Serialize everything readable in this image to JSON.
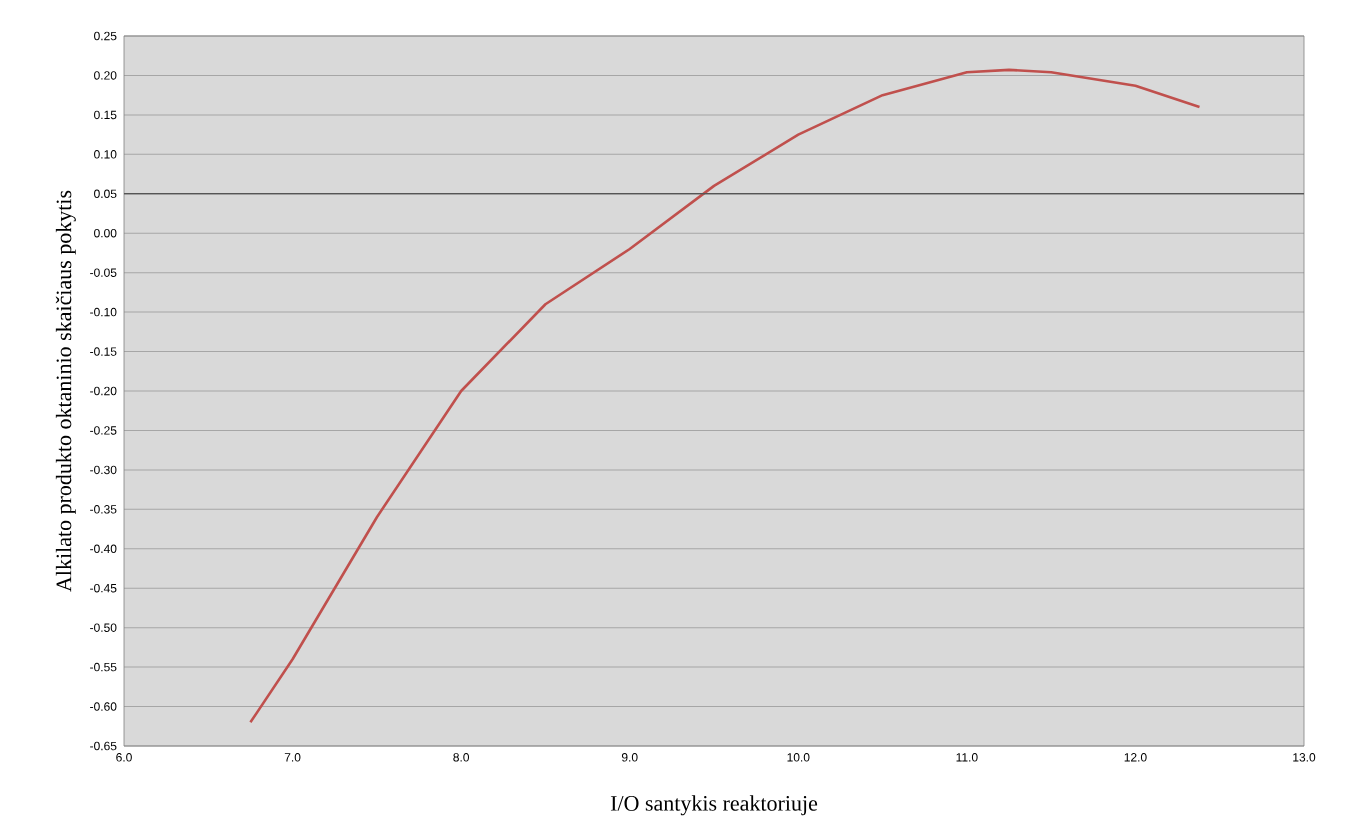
{
  "chart_data": {
    "type": "line",
    "xlabel": "I/O santykis reaktoriuje",
    "ylabel": "Alkilato produkto oktaninio skaičiaus pokytis",
    "series": [
      {
        "color": "#c0504d",
        "x": [
          6.75,
          7.0,
          7.5,
          8.0,
          8.5,
          9.0,
          9.5,
          10.0,
          10.5,
          11.0,
          11.25,
          11.5,
          12.0,
          12.38
        ],
        "values": [
          -0.62,
          -0.54,
          -0.36,
          -0.2,
          -0.09,
          -0.02,
          0.06,
          0.125,
          0.175,
          0.204,
          0.207,
          0.204,
          0.187,
          0.16
        ]
      }
    ],
    "xlim": [
      6.0,
      13.0
    ],
    "xticks": [
      {
        "value": 6,
        "label": "6.0"
      },
      {
        "value": 7,
        "label": "7.0"
      },
      {
        "value": 8,
        "label": "8.0"
      },
      {
        "value": 9,
        "label": "9.0"
      },
      {
        "value": 10,
        "label": "10.0"
      },
      {
        "value": 11,
        "label": "11.0"
      },
      {
        "value": 12,
        "label": "12.0"
      },
      {
        "value": 13,
        "label": "13.0"
      }
    ],
    "ylim": [
      -0.65,
      0.25
    ],
    "yticks": [
      {
        "value": -0.65,
        "label": "-0.65"
      },
      {
        "value": -0.6,
        "label": "-0.60"
      },
      {
        "value": -0.55,
        "label": "-0.55"
      },
      {
        "value": -0.5,
        "label": "-0.50"
      },
      {
        "value": -0.45,
        "label": "-0.45"
      },
      {
        "value": -0.4,
        "label": "-0.40"
      },
      {
        "value": -0.35,
        "label": "-0.35"
      },
      {
        "value": -0.3,
        "label": "-0.30"
      },
      {
        "value": -0.25,
        "label": "-0.25"
      },
      {
        "value": -0.2,
        "label": "-0.20"
      },
      {
        "value": -0.15,
        "label": "-0.15"
      },
      {
        "value": -0.1,
        "label": "-0.10"
      },
      {
        "value": -0.05,
        "label": "-0.05"
      },
      {
        "value": 0,
        "label": "0.00"
      },
      {
        "value": 0.05,
        "label": "0.05"
      },
      {
        "value": 0.1,
        "label": "0.10"
      },
      {
        "value": 0.15,
        "label": "0.15"
      },
      {
        "value": 0.2,
        "label": "0.20"
      },
      {
        "value": 0.25,
        "label": "0.25"
      }
    ],
    "ref_lines": [
      {
        "axis": "y",
        "value": 0.05,
        "color": "#555555"
      }
    ],
    "grid": "y",
    "marker": "none",
    "line_style": "solid"
  }
}
